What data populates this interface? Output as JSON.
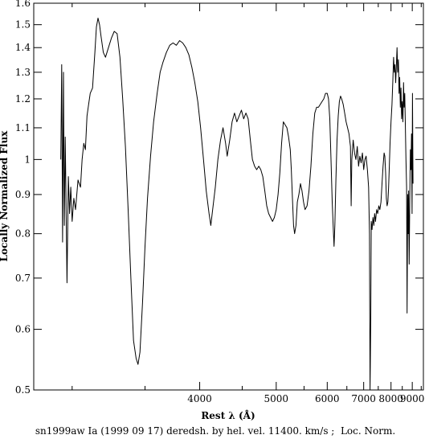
{
  "chart_data": {
    "type": "line",
    "title": "",
    "xlabel": "Rest λ (Å)",
    "ylabel": "Locally Normalized Flux",
    "caption": "sn1999aw Ia (1999 09 17) deredsh. by hel. vel. 11400. km/s ;  Loc. Norm.",
    "x_scale": "reciprocal",
    "y_scale": "log",
    "xlim": [
      2790,
      9630
    ],
    "ylim": [
      0.5,
      1.6
    ],
    "x_ticks": [
      4000,
      5000,
      6000,
      7000,
      8000,
      9000
    ],
    "x_minor_ticks": [
      3000,
      3500,
      4500,
      5500,
      6500,
      7500,
      8500,
      9500
    ],
    "y_ticks": [
      0.5,
      0.6,
      0.7,
      0.8,
      0.9,
      1,
      1.1,
      1.2,
      1.3,
      1.4,
      1.5,
      1.6
    ],
    "grid": false,
    "color": "#000000",
    "series": [
      {
        "name": "",
        "points": [
          [
            2935,
            1.0
          ],
          [
            2940,
            1.33
          ],
          [
            2945,
            0.78
          ],
          [
            2950,
            1.3
          ],
          [
            2955,
            0.82
          ],
          [
            2960,
            1.07
          ],
          [
            2965,
            0.86
          ],
          [
            2970,
            0.69
          ],
          [
            2978,
            0.95
          ],
          [
            2985,
            0.85
          ],
          [
            2992,
            0.92
          ],
          [
            3000,
            0.83
          ],
          [
            3010,
            0.89
          ],
          [
            3020,
            0.86
          ],
          [
            3035,
            0.94
          ],
          [
            3050,
            0.92
          ],
          [
            3060,
            1.0
          ],
          [
            3070,
            1.05
          ],
          [
            3080,
            1.03
          ],
          [
            3090,
            1.14
          ],
          [
            3100,
            1.18
          ],
          [
            3110,
            1.22
          ],
          [
            3125,
            1.24
          ],
          [
            3140,
            1.38
          ],
          [
            3150,
            1.49
          ],
          [
            3160,
            1.53
          ],
          [
            3170,
            1.5
          ],
          [
            3180,
            1.45
          ],
          [
            3195,
            1.38
          ],
          [
            3210,
            1.36
          ],
          [
            3230,
            1.4
          ],
          [
            3250,
            1.44
          ],
          [
            3270,
            1.47
          ],
          [
            3290,
            1.46
          ],
          [
            3310,
            1.36
          ],
          [
            3330,
            1.2
          ],
          [
            3350,
            1.04
          ],
          [
            3370,
            0.86
          ],
          [
            3390,
            0.7
          ],
          [
            3410,
            0.58
          ],
          [
            3430,
            0.55
          ],
          [
            3445,
            0.54
          ],
          [
            3460,
            0.56
          ],
          [
            3480,
            0.65
          ],
          [
            3500,
            0.77
          ],
          [
            3520,
            0.89
          ],
          [
            3545,
            1.01
          ],
          [
            3570,
            1.12
          ],
          [
            3600,
            1.22
          ],
          [
            3625,
            1.3
          ],
          [
            3650,
            1.34
          ],
          [
            3680,
            1.38
          ],
          [
            3710,
            1.41
          ],
          [
            3740,
            1.42
          ],
          [
            3770,
            1.41
          ],
          [
            3800,
            1.43
          ],
          [
            3830,
            1.42
          ],
          [
            3860,
            1.4
          ],
          [
            3890,
            1.37
          ],
          [
            3920,
            1.32
          ],
          [
            3950,
            1.26
          ],
          [
            3980,
            1.19
          ],
          [
            4010,
            1.1
          ],
          [
            4040,
            1.0
          ],
          [
            4070,
            0.91
          ],
          [
            4100,
            0.85
          ],
          [
            4120,
            0.82
          ],
          [
            4140,
            0.86
          ],
          [
            4170,
            0.92
          ],
          [
            4200,
            1.0
          ],
          [
            4230,
            1.06
          ],
          [
            4260,
            1.1
          ],
          [
            4290,
            1.05
          ],
          [
            4310,
            1.01
          ],
          [
            4340,
            1.06
          ],
          [
            4370,
            1.12
          ],
          [
            4400,
            1.15
          ],
          [
            4430,
            1.12
          ],
          [
            4460,
            1.14
          ],
          [
            4490,
            1.16
          ],
          [
            4520,
            1.13
          ],
          [
            4550,
            1.15
          ],
          [
            4580,
            1.13
          ],
          [
            4610,
            1.06
          ],
          [
            4640,
            1.0
          ],
          [
            4670,
            0.98
          ],
          [
            4700,
            0.97
          ],
          [
            4730,
            0.98
          ],
          [
            4760,
            0.97
          ],
          [
            4790,
            0.95
          ],
          [
            4820,
            0.91
          ],
          [
            4850,
            0.87
          ],
          [
            4880,
            0.85
          ],
          [
            4910,
            0.84
          ],
          [
            4940,
            0.83
          ],
          [
            4970,
            0.84
          ],
          [
            5000,
            0.86
          ],
          [
            5030,
            0.9
          ],
          [
            5060,
            0.96
          ],
          [
            5090,
            1.05
          ],
          [
            5120,
            1.12
          ],
          [
            5150,
            1.11
          ],
          [
            5180,
            1.1
          ],
          [
            5210,
            1.07
          ],
          [
            5240,
            1.03
          ],
          [
            5260,
            0.97
          ],
          [
            5280,
            0.89
          ],
          [
            5300,
            0.82
          ],
          [
            5320,
            0.8
          ],
          [
            5345,
            0.82
          ],
          [
            5370,
            0.88
          ],
          [
            5400,
            0.9
          ],
          [
            5430,
            0.93
          ],
          [
            5460,
            0.91
          ],
          [
            5490,
            0.88
          ],
          [
            5520,
            0.86
          ],
          [
            5560,
            0.87
          ],
          [
            5600,
            0.91
          ],
          [
            5640,
            0.98
          ],
          [
            5680,
            1.08
          ],
          [
            5720,
            1.15
          ],
          [
            5760,
            1.17
          ],
          [
            5800,
            1.17
          ],
          [
            5840,
            1.18
          ],
          [
            5880,
            1.19
          ],
          [
            5920,
            1.2
          ],
          [
            5960,
            1.22
          ],
          [
            6000,
            1.22
          ],
          [
            6030,
            1.2
          ],
          [
            6060,
            1.13
          ],
          [
            6090,
            1.0
          ],
          [
            6120,
            0.88
          ],
          [
            6150,
            0.8
          ],
          [
            6165,
            0.77
          ],
          [
            6185,
            0.82
          ],
          [
            6210,
            0.94
          ],
          [
            6240,
            1.06
          ],
          [
            6270,
            1.14
          ],
          [
            6300,
            1.19
          ],
          [
            6330,
            1.21
          ],
          [
            6360,
            1.2
          ],
          [
            6400,
            1.18
          ],
          [
            6440,
            1.15
          ],
          [
            6480,
            1.12
          ],
          [
            6520,
            1.1
          ],
          [
            6560,
            1.08
          ],
          [
            6600,
            1.04
          ],
          [
            6620,
            0.87
          ],
          [
            6640,
            1.0
          ],
          [
            6680,
            1.06
          ],
          [
            6720,
            1.02
          ],
          [
            6760,
            1.0
          ],
          [
            6800,
            1.04
          ],
          [
            6840,
            0.98
          ],
          [
            6880,
            1.01
          ],
          [
            6920,
            0.99
          ],
          [
            6960,
            1.02
          ],
          [
            7000,
            0.97
          ],
          [
            7040,
            1.0
          ],
          [
            7080,
            1.01
          ],
          [
            7120,
            0.97
          ],
          [
            7160,
            0.92
          ],
          [
            7190,
            0.8
          ],
          [
            7210,
            0.5
          ],
          [
            7235,
            0.62
          ],
          [
            7250,
            0.83
          ],
          [
            7280,
            0.81
          ],
          [
            7310,
            0.84
          ],
          [
            7340,
            0.82
          ],
          [
            7370,
            0.85
          ],
          [
            7400,
            0.83
          ],
          [
            7440,
            0.86
          ],
          [
            7480,
            0.85
          ],
          [
            7520,
            0.87
          ],
          [
            7560,
            0.86
          ],
          [
            7600,
            0.88
          ],
          [
            7640,
            0.93
          ],
          [
            7680,
            0.98
          ],
          [
            7720,
            1.02
          ],
          [
            7750,
            1.01
          ],
          [
            7780,
            0.96
          ],
          [
            7810,
            0.89
          ],
          [
            7840,
            0.87
          ],
          [
            7870,
            0.88
          ],
          [
            7900,
            0.92
          ],
          [
            7930,
            0.98
          ],
          [
            7960,
            1.05
          ],
          [
            8000,
            1.12
          ],
          [
            8040,
            1.18
          ],
          [
            8080,
            1.28
          ],
          [
            8110,
            1.36
          ],
          [
            8140,
            1.3
          ],
          [
            8170,
            1.33
          ],
          [
            8200,
            1.26
          ],
          [
            8230,
            1.32
          ],
          [
            8260,
            1.4
          ],
          [
            8290,
            1.3
          ],
          [
            8320,
            1.35
          ],
          [
            8350,
            1.22
          ],
          [
            8380,
            1.28
          ],
          [
            8410,
            1.17
          ],
          [
            8440,
            1.24
          ],
          [
            8470,
            1.13
          ],
          [
            8500,
            1.19
          ],
          [
            8530,
            1.12
          ],
          [
            8560,
            1.26
          ],
          [
            8590,
            1.17
          ],
          [
            8620,
            1.22
          ],
          [
            8650,
            1.1
          ],
          [
            8680,
            1.0
          ],
          [
            8710,
            0.92
          ],
          [
            8735,
            0.63
          ],
          [
            8760,
            0.9
          ],
          [
            8790,
            0.8
          ],
          [
            8810,
            0.91
          ],
          [
            8840,
            0.73
          ],
          [
            8870,
            0.88
          ],
          [
            8900,
            1.03
          ],
          [
            8930,
            0.97
          ],
          [
            8960,
            1.08
          ],
          [
            8990,
            0.85
          ],
          [
            9010,
            1.22
          ],
          [
            9040,
            0.93
          ]
        ]
      }
    ]
  }
}
